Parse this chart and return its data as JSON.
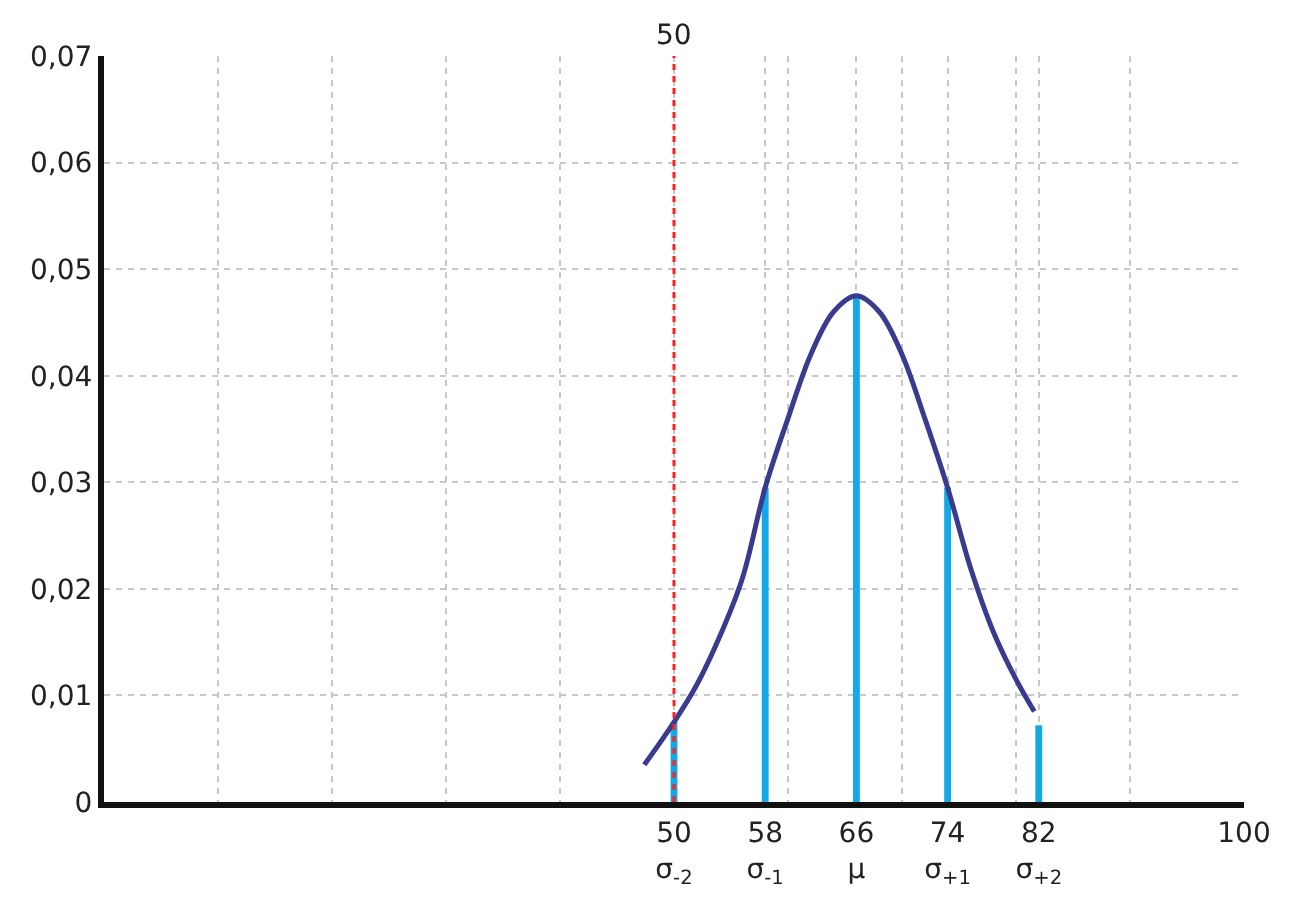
{
  "chart_data": {
    "type": "line",
    "xlim": [
      0,
      100
    ],
    "ylim": [
      0,
      0.07
    ],
    "xticks": [
      {
        "value": 10,
        "label": null
      },
      {
        "value": 20,
        "label": null
      },
      {
        "value": 30,
        "label": null
      },
      {
        "value": 40,
        "label": null
      },
      {
        "value": 50,
        "label": "50\nσ$_{-2}$"
      },
      {
        "value": 58,
        "label": "58\nσ$_{-1}$"
      },
      {
        "value": 60,
        "label": null
      },
      {
        "value": 66,
        "label": "66\nμ"
      },
      {
        "value": 70,
        "label": null
      },
      {
        "value": 74,
        "label": "74\nσ$_{+1}$"
      },
      {
        "value": 80,
        "label": null
      },
      {
        "value": 82,
        "label": "82\nσ$_{+2}$"
      },
      {
        "value": 90,
        "label": null
      },
      {
        "value": 100,
        "label": "100"
      }
    ],
    "yticks": [
      0,
      {
        "value": 0.01,
        "label": "0,01"
      },
      {
        "value": 0.02,
        "label": "0,02"
      },
      {
        "value": 0.03,
        "label": "0,03"
      },
      {
        "value": 0.04,
        "label": "0,04"
      },
      {
        "value": 0.05,
        "label": "0,05"
      },
      {
        "value": 0.06,
        "label": "0,06"
      },
      {
        "value": 0.07,
        "label": "0,07"
      }
    ],
    "grid": true,
    "series": [
      {
        "color": "#3a3b8f",
        "x": [
          47.4,
          50,
          52,
          54,
          56,
          58,
          60,
          62,
          64,
          66,
          68,
          70,
          72,
          74,
          76,
          78,
          80,
          81.6
        ],
        "values": [
          0.0035,
          0.0075,
          0.011,
          0.0155,
          0.021,
          0.0295,
          0.036,
          0.042,
          0.046,
          0.0475,
          0.046,
          0.042,
          0.036,
          0.0295,
          0.022,
          0.016,
          0.0115,
          0.0085
        ]
      },
      {
        "type": "bar",
        "color": "#12a9e6",
        "x": [
          50,
          58,
          66,
          74,
          82
        ],
        "values": [
          0.0075,
          0.0295,
          0.0475,
          0.0295,
          0.0072
        ]
      }
    ],
    "ref_lines": [
      {
        "axis": "x",
        "value": 50,
        "label": "50",
        "color": "#ff2020",
        "line_style": "dotted"
      }
    ]
  }
}
